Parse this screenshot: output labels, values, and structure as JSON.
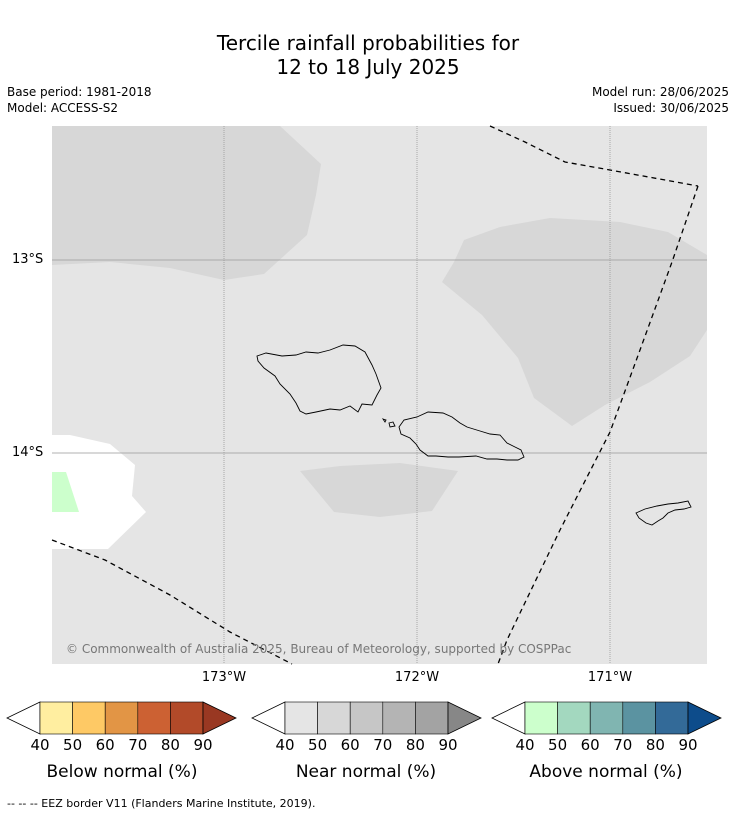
{
  "header": {
    "title_line1": "Tercile rainfall probabilities for",
    "title_line2": "12 to 18 July 2025",
    "base_period": "Base period: 1981-2018",
    "model": "Model: ACCESS-S2",
    "model_run": "Model run: 28/06/2025",
    "issued": "Issued: 30/06/2025"
  },
  "map": {
    "latitudes": [
      "13°S",
      "14°S"
    ],
    "longitudes": [
      "173°W",
      "172°W",
      "171°W"
    ],
    "copyright": "© Commonwealth of Australia 2025, Bureau of Meteorology, supported by COSPPac",
    "colors": {
      "background": "#e5e5e5",
      "near_normal_50": "#d7d7d7",
      "above_normal_40": "#ccffcc",
      "no_signal": "#ffffff"
    }
  },
  "colorbars": [
    {
      "label": "Below normal (%)",
      "ticks": [
        "40",
        "50",
        "60",
        "70",
        "80",
        "90"
      ],
      "colors": [
        "#ffeea0",
        "#fec965",
        "#e29545",
        "#cc6133",
        "#b24a29",
        "#993822"
      ]
    },
    {
      "label": "Near normal (%)",
      "ticks": [
        "40",
        "50",
        "60",
        "70",
        "80",
        "90"
      ],
      "colors": [
        "#e5e5e5",
        "#d7d7d7",
        "#c6c6c6",
        "#b4b4b4",
        "#a3a3a3",
        "#878787"
      ]
    },
    {
      "label": "Above normal (%)",
      "ticks": [
        "40",
        "50",
        "60",
        "70",
        "80",
        "90"
      ],
      "colors": [
        "#ccffcc",
        "#a3d8bf",
        "#80b5b1",
        "#5b93a1",
        "#336a98",
        "#0d4c8b"
      ]
    }
  ],
  "footnote": "--  --  -- EEZ border V11 (Flanders Marine Institute, 2019)."
}
